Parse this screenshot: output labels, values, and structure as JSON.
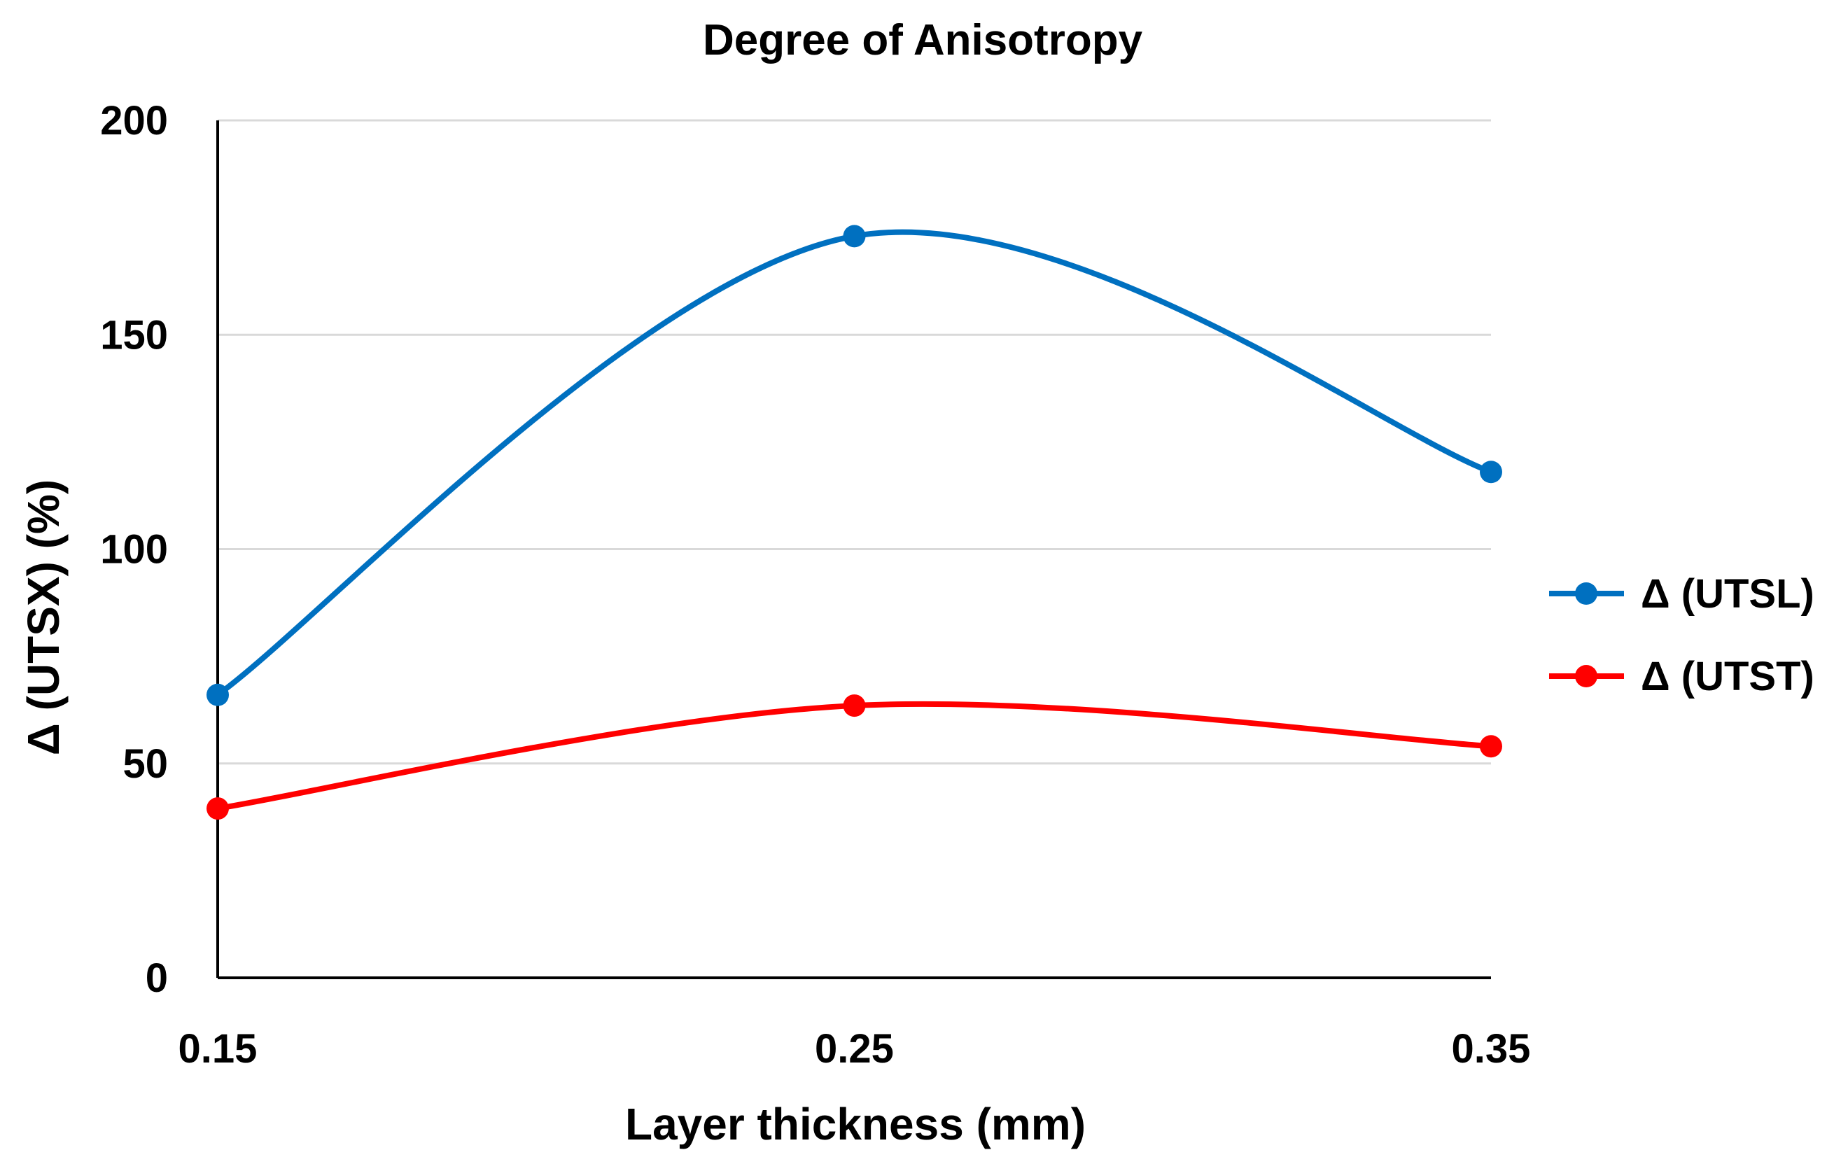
{
  "chart_data": {
    "type": "line",
    "smooth": true,
    "title": "Degree of Anisotropy",
    "xlabel": "Layer thickness (mm)",
    "ylabel": "Δ (UTSX) (%)",
    "x": [
      0.15,
      0.25,
      0.35
    ],
    "x_tick_labels": [
      "0.15",
      "0.25",
      "0.35"
    ],
    "ylim": [
      0,
      200
    ],
    "y_ticks": [
      0,
      50,
      100,
      150,
      200
    ],
    "y_tick_labels": [
      "0",
      "50",
      "100",
      "150",
      "200"
    ],
    "grid": true,
    "legend_position": "right",
    "series": [
      {
        "name": "Δ (UTSL)",
        "values": [
          66,
          173,
          118
        ],
        "color": "#0070c0"
      },
      {
        "name": "Δ (UTST)",
        "values": [
          39.5,
          63.5,
          54
        ],
        "color": "#ff0000"
      }
    ]
  }
}
